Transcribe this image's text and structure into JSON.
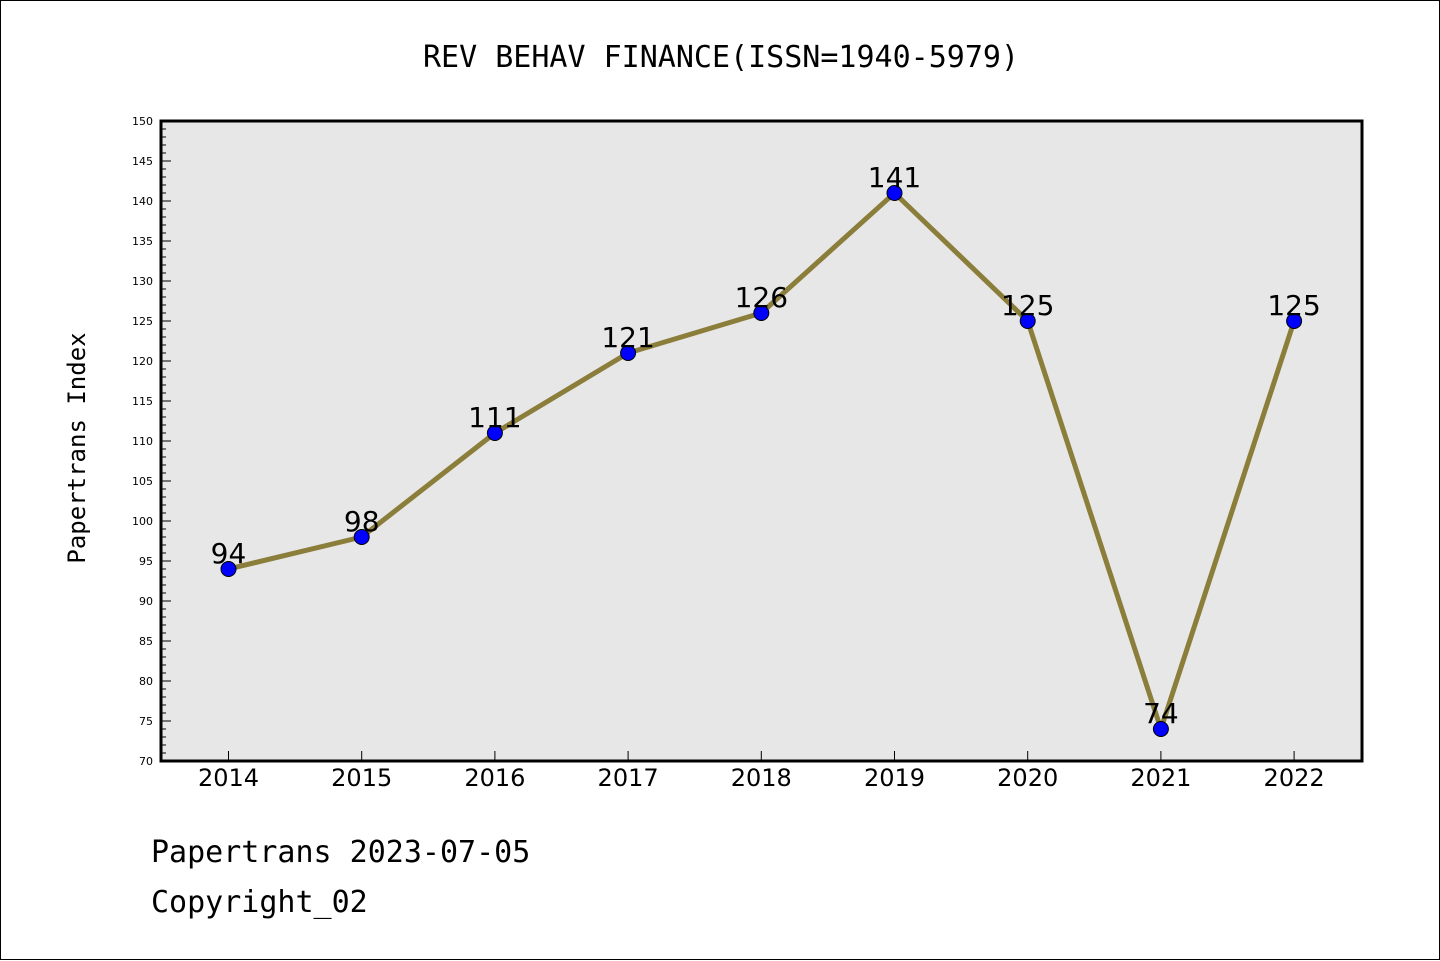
{
  "chart_data": {
    "type": "line",
    "title": "REV BEHAV FINANCE(ISSN=1940-5979)",
    "xlabel": "",
    "ylabel": "Papertrans Index",
    "categories": [
      "2014",
      "2015",
      "2016",
      "2017",
      "2018",
      "2019",
      "2020",
      "2021",
      "2022"
    ],
    "series": [
      {
        "values": [
          94,
          98,
          111,
          121,
          126,
          141,
          125,
          74,
          125
        ]
      }
    ],
    "data_labels": [
      "94",
      "98",
      "111",
      "121",
      "126",
      "141",
      "125",
      "74",
      "125"
    ],
    "ylim": [
      70,
      150
    ],
    "y_ticks": [
      70,
      75,
      80,
      85,
      90,
      95,
      100,
      105,
      110,
      115,
      120,
      125,
      130,
      135,
      140,
      145,
      150
    ],
    "grid": false,
    "legend": "none",
    "colors": {
      "line": "#8B7D3A",
      "marker": "#0000FF",
      "plot_background": "#E7E7E7"
    }
  },
  "footer": {
    "date_line": "Papertrans 2023-07-05",
    "copyright": "Copyright_02"
  }
}
